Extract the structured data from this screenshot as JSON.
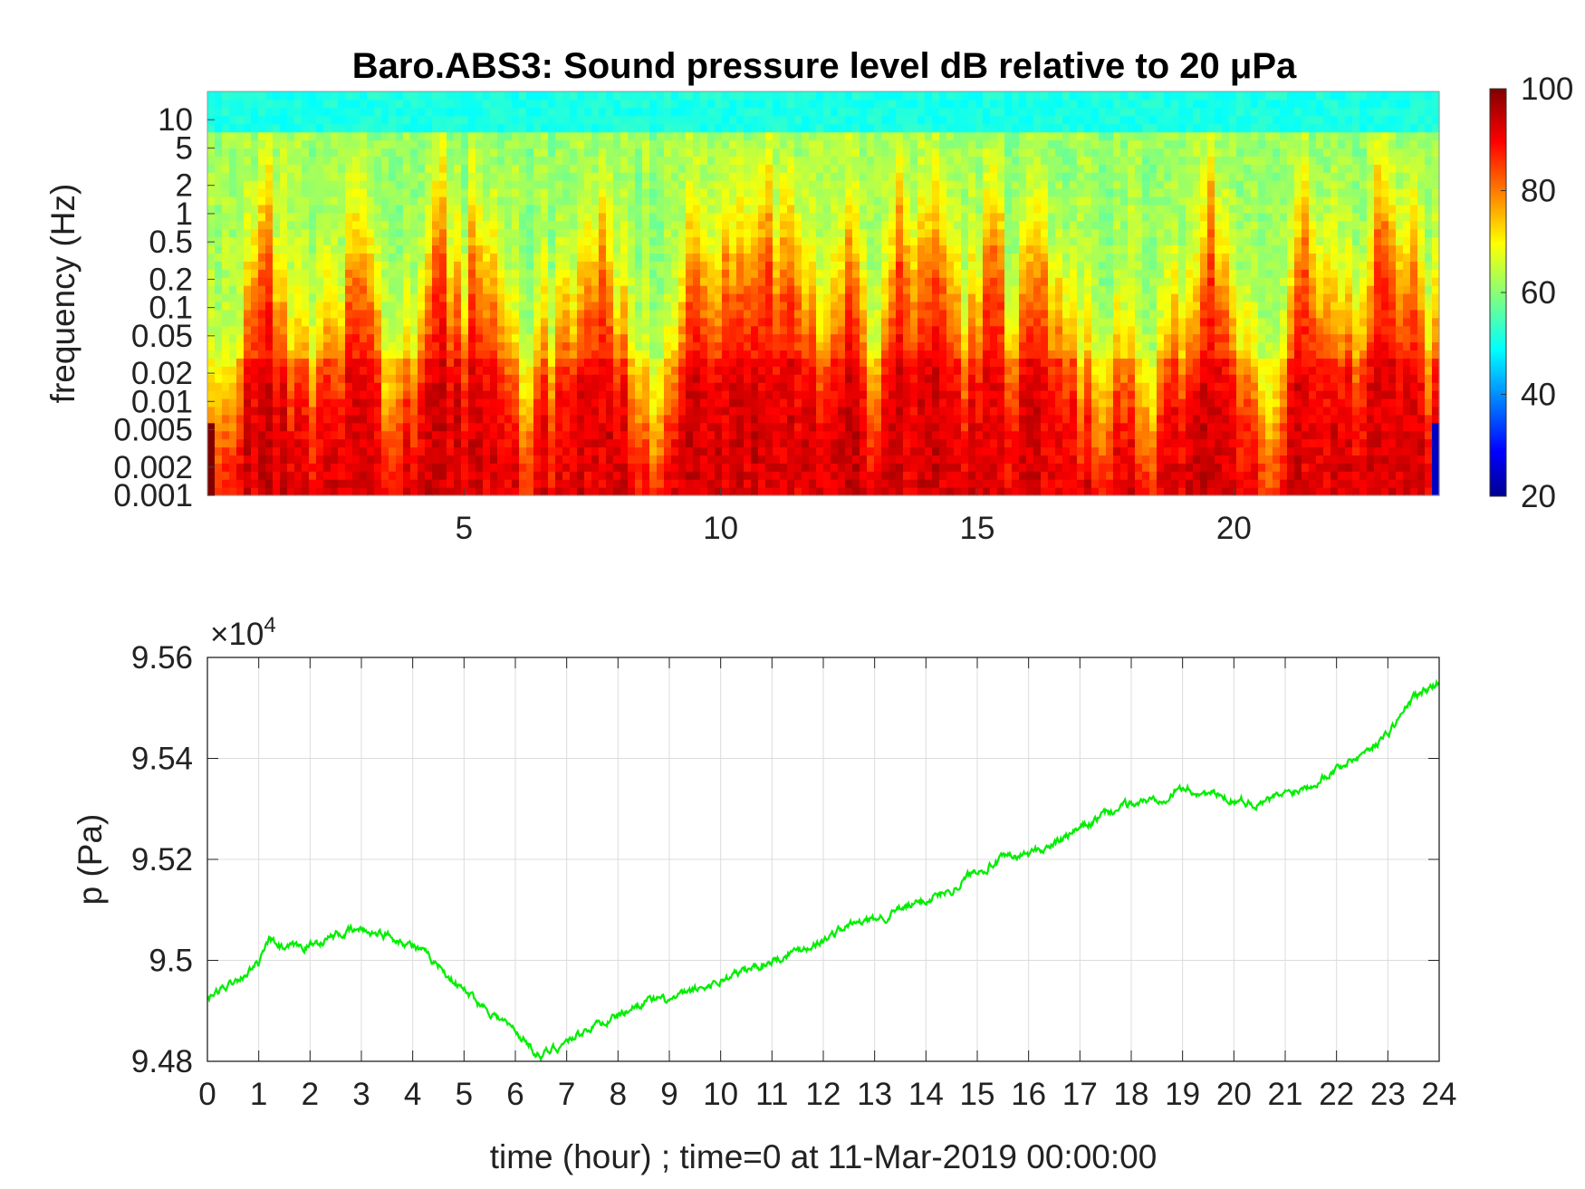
{
  "chart_data": [
    {
      "type": "heatmap",
      "title": "Baro.ABS3: Sound pressure level dB relative to 20 μPa",
      "xlabel": "",
      "ylabel": "frequency (Hz)",
      "x_scale": "linear",
      "y_scale": "log",
      "xlim": [
        0,
        24
      ],
      "ylim": [
        0.001,
        20
      ],
      "x_ticks": [
        5,
        10,
        15,
        20
      ],
      "y_ticks": [
        0.001,
        0.002,
        0.005,
        0.01,
        0.02,
        0.05,
        0.1,
        0.2,
        0.5,
        1,
        2,
        5,
        10
      ],
      "y_tick_labels": [
        "0.001",
        "0.002",
        "0.005",
        "0.01",
        "0.02",
        "0.05",
        "0.1",
        "0.2",
        "0.5",
        "1",
        "2",
        "5",
        "10"
      ],
      "colorbar": {
        "colormap": "jet",
        "clim": [
          20,
          100
        ],
        "ticks": [
          20,
          40,
          60,
          80,
          100
        ],
        "position": "right"
      },
      "high_frequency_activity_hours": [
        1.1,
        2.9,
        4.6,
        5.3,
        7.6,
        9.5,
        10.2,
        10.8,
        11.4,
        12.6,
        13.5,
        14.2,
        15.3,
        16.2,
        19.6,
        21.4,
        22.8,
        23.4
      ],
      "quiet_hours": [
        0.3,
        3.7,
        6.1,
        8.6,
        13.0,
        17.3,
        18.4,
        20.7
      ]
    },
    {
      "type": "line",
      "xlabel": "time (hour) ; time=0 at 11-Mar-2019 00:00:00",
      "ylabel": "p (Pa)",
      "y_multiplier_label": "×10",
      "y_multiplier_exponent": "4",
      "xlim": [
        0,
        24
      ],
      "ylim": [
        9.48,
        9.56
      ],
      "x_ticks": [
        0,
        1,
        2,
        3,
        4,
        5,
        6,
        7,
        8,
        9,
        10,
        11,
        12,
        13,
        14,
        15,
        16,
        17,
        18,
        19,
        20,
        21,
        22,
        23,
        24
      ],
      "y_ticks": [
        9.48,
        9.5,
        9.52,
        9.54,
        9.56
      ],
      "y_tick_labels": [
        "9.48",
        "9.5",
        "9.52",
        "9.54",
        "9.56"
      ],
      "grid": true,
      "series": [
        {
          "color": "#00ee00",
          "x": [
            0,
            0.5,
            1.0,
            1.2,
            1.5,
            2.0,
            2.5,
            3.0,
            3.5,
            4.0,
            4.5,
            5.0,
            5.5,
            6.0,
            6.5,
            7.0,
            7.5,
            8.0,
            8.5,
            9.0,
            9.5,
            10.0,
            10.5,
            11.0,
            11.5,
            12.0,
            12.5,
            13.0,
            13.5,
            14.0,
            14.5,
            15.0,
            15.5,
            16.0,
            16.5,
            17.0,
            17.5,
            18.0,
            18.5,
            19.0,
            19.5,
            20.0,
            20.5,
            21.0,
            21.5,
            22.0,
            22.5,
            23.0,
            23.5,
            24.0
          ],
          "values": [
            9.492,
            9.496,
            9.499,
            9.504,
            9.502,
            9.503,
            9.505,
            9.506,
            9.505,
            9.503,
            9.499,
            9.494,
            9.49,
            9.486,
            9.481,
            9.484,
            9.487,
            9.489,
            9.492,
            9.492,
            9.494,
            9.496,
            9.498,
            9.5,
            9.502,
            9.504,
            9.507,
            9.508,
            9.51,
            9.512,
            9.514,
            9.518,
            9.52,
            9.521,
            9.523,
            9.526,
            9.529,
            9.531,
            9.532,
            9.534,
            9.533,
            9.532,
            9.531,
            9.533,
            9.535,
            9.538,
            9.541,
            9.545,
            9.552,
            9.555
          ]
        }
      ]
    }
  ]
}
